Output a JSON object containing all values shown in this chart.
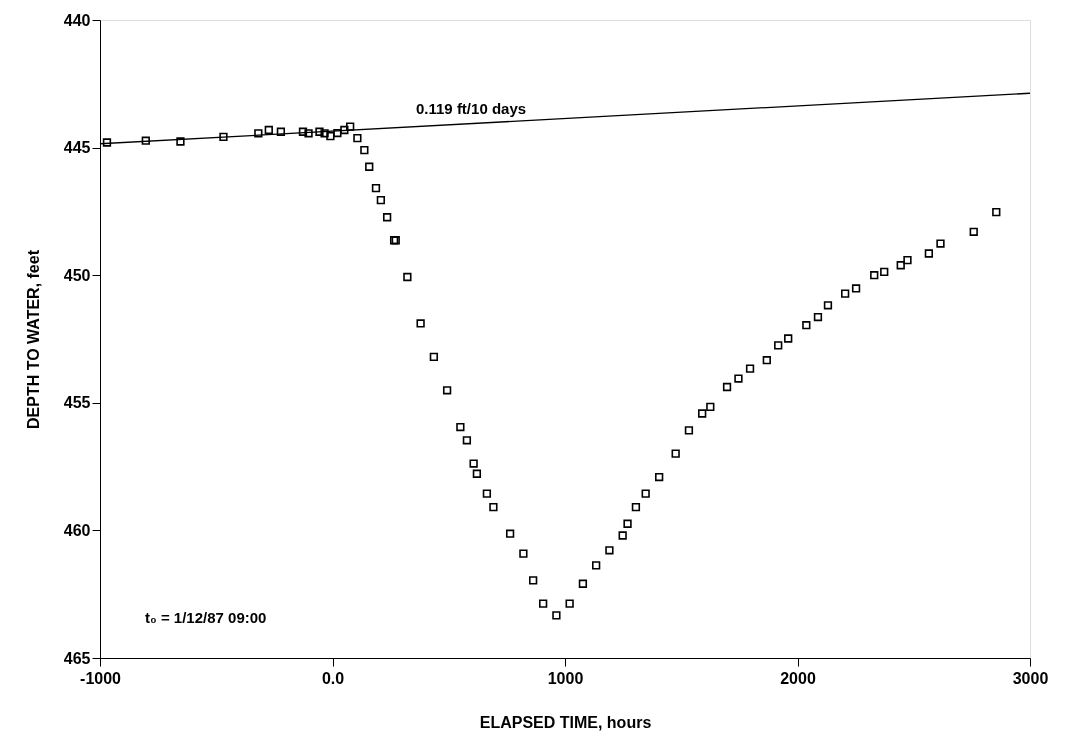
{
  "chart_data": {
    "type": "scatter",
    "xlabel": "ELAPSED TIME, hours",
    "ylabel": "DEPTH TO WATER, feet",
    "xlim": [
      -1000,
      3000
    ],
    "ylim": [
      465,
      440
    ],
    "xticks": [
      -1000,
      {
        "value": 0,
        "label": "0.0"
      },
      1000,
      2000,
      3000
    ],
    "yticks": [
      440,
      445,
      450,
      455,
      460,
      465
    ],
    "grid": false,
    "marker": "square",
    "series": [
      {
        "color": "#000000",
        "x": [
          -970,
          -803,
          -654,
          -469,
          -319,
          -274,
          -222,
          -127,
          -103,
          -56,
          -34,
          -9,
          21,
          51,
          76,
          107,
          137,
          158,
          187,
          208,
          235,
          265,
          272,
          322,
          379,
          436,
          493,
          550,
          578,
          607,
          621,
          664,
          692,
          764,
          821,
          863,
          906,
          963,
          1020,
          1077,
          1134,
          1191,
          1248,
          1269,
          1305,
          1347,
          1405,
          1476,
          1533,
          1590,
          1625,
          1697,
          1746,
          1796,
          1868,
          1917,
          1960,
          2038,
          2088,
          2131,
          2205,
          2252,
          2330,
          2373,
          2444,
          2473,
          2565,
          2615,
          2758,
          2855
        ],
        "values": [
          444.8,
          444.73,
          444.76,
          444.58,
          444.44,
          444.31,
          444.38,
          444.38,
          444.44,
          444.38,
          444.44,
          444.55,
          444.43,
          444.31,
          444.18,
          444.63,
          445.1,
          445.75,
          446.59,
          447.06,
          447.73,
          448.63,
          448.63,
          450.07,
          451.89,
          453.2,
          454.51,
          455.95,
          456.47,
          457.38,
          457.78,
          458.56,
          459.09,
          460.13,
          460.91,
          461.96,
          462.87,
          463.33,
          462.87,
          462.09,
          461.37,
          460.78,
          460.2,
          459.74,
          459.09,
          458.56,
          457.91,
          456.99,
          456.08,
          455.42,
          455.16,
          454.38,
          454.05,
          453.66,
          453.33,
          452.75,
          452.48,
          451.96,
          451.64,
          451.18,
          450.72,
          450.52,
          450.0,
          449.87,
          449.61,
          449.41,
          449.15,
          448.76,
          448.3,
          447.53
        ]
      },
      {
        "type": "line",
        "marker": "none",
        "color": "#000000",
        "line_style": "solid",
        "x": [
          -1000,
          3000
        ],
        "values": [
          444.85,
          442.87
        ]
      }
    ],
    "annotations": [
      "0.119 ft/10 days",
      "t₀ = 1/12/87   09:00"
    ]
  }
}
